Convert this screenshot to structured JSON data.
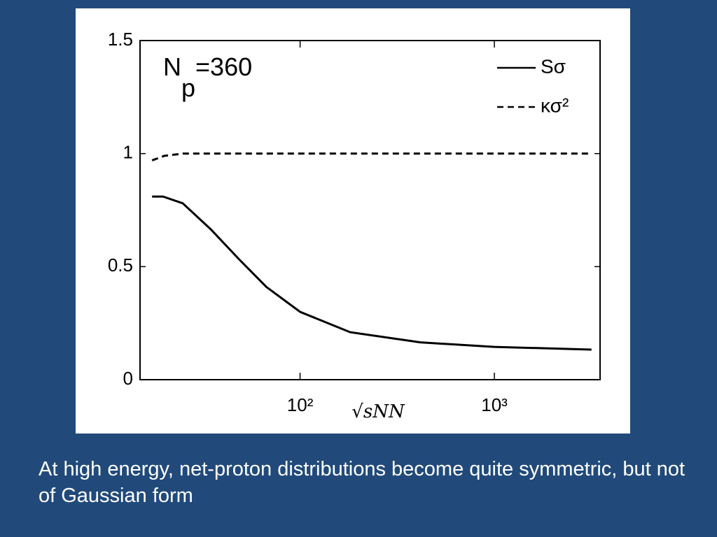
{
  "chart_data": {
    "type": "line",
    "annotation": {
      "main": "N",
      "subscript": "p",
      "tail": "=360"
    },
    "xlabel": "√sNN",
    "xscale": "log",
    "xlim": [
      15,
      3500
    ],
    "xticks": [
      {
        "value": 100,
        "label": "10²"
      },
      {
        "value": 1000,
        "label": "10³"
      }
    ],
    "ylim": [
      0,
      1.5
    ],
    "yticks": [
      0,
      0.5,
      1,
      1.5
    ],
    "legend": "upper right",
    "series": [
      {
        "name": "Sσ",
        "color": "#000000",
        "dash": "solid",
        "x": [
          17.3,
          19.7,
          24.9,
          34.7,
          48.2,
          67.1,
          100,
          181,
          416,
          1000,
          3162
        ],
        "values": [
          0.81,
          0.81,
          0.78,
          0.665,
          0.535,
          0.41,
          0.3,
          0.21,
          0.165,
          0.145,
          0.133
        ]
      },
      {
        "name": "κσ²",
        "color": "#000000",
        "dash": "dashed",
        "x": [
          17.3,
          20,
          25,
          3162
        ],
        "values": [
          0.97,
          0.99,
          1.0,
          1.0
        ]
      }
    ]
  },
  "caption": "At high energy, net-proton distributions become quite symmetric, but not of Gaussian form"
}
